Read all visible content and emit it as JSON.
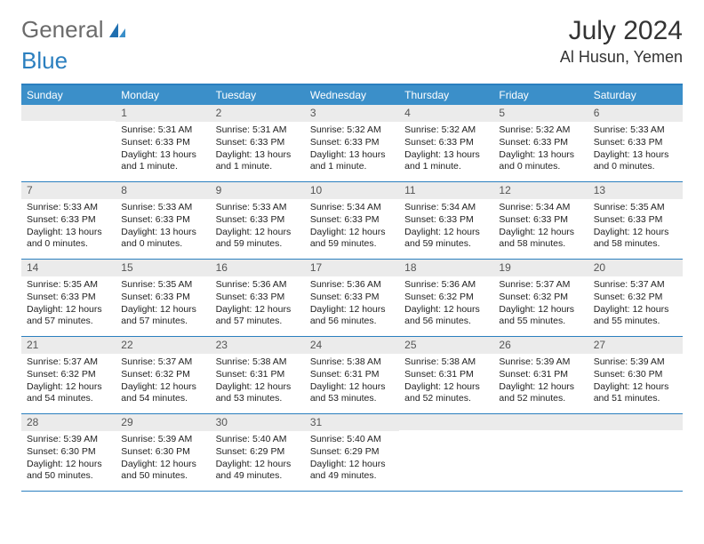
{
  "brand": {
    "word1": "General",
    "word2": "Blue"
  },
  "title": "July 2024",
  "location": "Al Husun, Yemen",
  "day_names": [
    "Sunday",
    "Monday",
    "Tuesday",
    "Wednesday",
    "Thursday",
    "Friday",
    "Saturday"
  ],
  "colors": {
    "header_bg": "#3b8fc9",
    "border": "#2b7fbf",
    "daynum_bg": "#ebebeb",
    "text": "#333333"
  },
  "weeks": [
    [
      {
        "n": "",
        "sr": "",
        "ss": "",
        "dl": ""
      },
      {
        "n": "1",
        "sr": "Sunrise: 5:31 AM",
        "ss": "Sunset: 6:33 PM",
        "dl": "Daylight: 13 hours and 1 minute."
      },
      {
        "n": "2",
        "sr": "Sunrise: 5:31 AM",
        "ss": "Sunset: 6:33 PM",
        "dl": "Daylight: 13 hours and 1 minute."
      },
      {
        "n": "3",
        "sr": "Sunrise: 5:32 AM",
        "ss": "Sunset: 6:33 PM",
        "dl": "Daylight: 13 hours and 1 minute."
      },
      {
        "n": "4",
        "sr": "Sunrise: 5:32 AM",
        "ss": "Sunset: 6:33 PM",
        "dl": "Daylight: 13 hours and 1 minute."
      },
      {
        "n": "5",
        "sr": "Sunrise: 5:32 AM",
        "ss": "Sunset: 6:33 PM",
        "dl": "Daylight: 13 hours and 0 minutes."
      },
      {
        "n": "6",
        "sr": "Sunrise: 5:33 AM",
        "ss": "Sunset: 6:33 PM",
        "dl": "Daylight: 13 hours and 0 minutes."
      }
    ],
    [
      {
        "n": "7",
        "sr": "Sunrise: 5:33 AM",
        "ss": "Sunset: 6:33 PM",
        "dl": "Daylight: 13 hours and 0 minutes."
      },
      {
        "n": "8",
        "sr": "Sunrise: 5:33 AM",
        "ss": "Sunset: 6:33 PM",
        "dl": "Daylight: 13 hours and 0 minutes."
      },
      {
        "n": "9",
        "sr": "Sunrise: 5:33 AM",
        "ss": "Sunset: 6:33 PM",
        "dl": "Daylight: 12 hours and 59 minutes."
      },
      {
        "n": "10",
        "sr": "Sunrise: 5:34 AM",
        "ss": "Sunset: 6:33 PM",
        "dl": "Daylight: 12 hours and 59 minutes."
      },
      {
        "n": "11",
        "sr": "Sunrise: 5:34 AM",
        "ss": "Sunset: 6:33 PM",
        "dl": "Daylight: 12 hours and 59 minutes."
      },
      {
        "n": "12",
        "sr": "Sunrise: 5:34 AM",
        "ss": "Sunset: 6:33 PM",
        "dl": "Daylight: 12 hours and 58 minutes."
      },
      {
        "n": "13",
        "sr": "Sunrise: 5:35 AM",
        "ss": "Sunset: 6:33 PM",
        "dl": "Daylight: 12 hours and 58 minutes."
      }
    ],
    [
      {
        "n": "14",
        "sr": "Sunrise: 5:35 AM",
        "ss": "Sunset: 6:33 PM",
        "dl": "Daylight: 12 hours and 57 minutes."
      },
      {
        "n": "15",
        "sr": "Sunrise: 5:35 AM",
        "ss": "Sunset: 6:33 PM",
        "dl": "Daylight: 12 hours and 57 minutes."
      },
      {
        "n": "16",
        "sr": "Sunrise: 5:36 AM",
        "ss": "Sunset: 6:33 PM",
        "dl": "Daylight: 12 hours and 57 minutes."
      },
      {
        "n": "17",
        "sr": "Sunrise: 5:36 AM",
        "ss": "Sunset: 6:33 PM",
        "dl": "Daylight: 12 hours and 56 minutes."
      },
      {
        "n": "18",
        "sr": "Sunrise: 5:36 AM",
        "ss": "Sunset: 6:32 PM",
        "dl": "Daylight: 12 hours and 56 minutes."
      },
      {
        "n": "19",
        "sr": "Sunrise: 5:37 AM",
        "ss": "Sunset: 6:32 PM",
        "dl": "Daylight: 12 hours and 55 minutes."
      },
      {
        "n": "20",
        "sr": "Sunrise: 5:37 AM",
        "ss": "Sunset: 6:32 PM",
        "dl": "Daylight: 12 hours and 55 minutes."
      }
    ],
    [
      {
        "n": "21",
        "sr": "Sunrise: 5:37 AM",
        "ss": "Sunset: 6:32 PM",
        "dl": "Daylight: 12 hours and 54 minutes."
      },
      {
        "n": "22",
        "sr": "Sunrise: 5:37 AM",
        "ss": "Sunset: 6:32 PM",
        "dl": "Daylight: 12 hours and 54 minutes."
      },
      {
        "n": "23",
        "sr": "Sunrise: 5:38 AM",
        "ss": "Sunset: 6:31 PM",
        "dl": "Daylight: 12 hours and 53 minutes."
      },
      {
        "n": "24",
        "sr": "Sunrise: 5:38 AM",
        "ss": "Sunset: 6:31 PM",
        "dl": "Daylight: 12 hours and 53 minutes."
      },
      {
        "n": "25",
        "sr": "Sunrise: 5:38 AM",
        "ss": "Sunset: 6:31 PM",
        "dl": "Daylight: 12 hours and 52 minutes."
      },
      {
        "n": "26",
        "sr": "Sunrise: 5:39 AM",
        "ss": "Sunset: 6:31 PM",
        "dl": "Daylight: 12 hours and 52 minutes."
      },
      {
        "n": "27",
        "sr": "Sunrise: 5:39 AM",
        "ss": "Sunset: 6:30 PM",
        "dl": "Daylight: 12 hours and 51 minutes."
      }
    ],
    [
      {
        "n": "28",
        "sr": "Sunrise: 5:39 AM",
        "ss": "Sunset: 6:30 PM",
        "dl": "Daylight: 12 hours and 50 minutes."
      },
      {
        "n": "29",
        "sr": "Sunrise: 5:39 AM",
        "ss": "Sunset: 6:30 PM",
        "dl": "Daylight: 12 hours and 50 minutes."
      },
      {
        "n": "30",
        "sr": "Sunrise: 5:40 AM",
        "ss": "Sunset: 6:29 PM",
        "dl": "Daylight: 12 hours and 49 minutes."
      },
      {
        "n": "31",
        "sr": "Sunrise: 5:40 AM",
        "ss": "Sunset: 6:29 PM",
        "dl": "Daylight: 12 hours and 49 minutes."
      },
      {
        "n": "",
        "sr": "",
        "ss": "",
        "dl": ""
      },
      {
        "n": "",
        "sr": "",
        "ss": "",
        "dl": ""
      },
      {
        "n": "",
        "sr": "",
        "ss": "",
        "dl": ""
      }
    ]
  ]
}
